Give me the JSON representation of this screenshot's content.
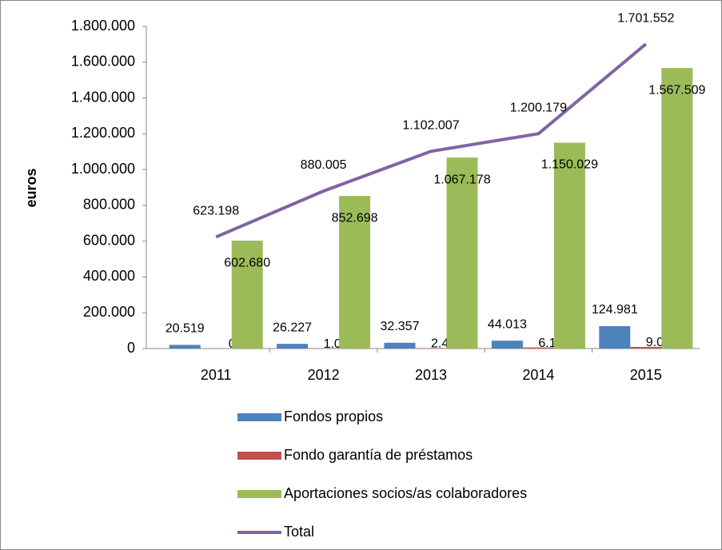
{
  "chart_data": {
    "type": "bar_line",
    "y_label": "euros",
    "categories": [
      "2011",
      "2012",
      "2013",
      "2014",
      "2015"
    ],
    "series": [
      {
        "name": "Fondos propios",
        "type": "bar",
        "color": "#4f81bd",
        "values": [
          20519,
          26227,
          32357,
          44013,
          124981
        ],
        "value_labels": [
          "20.519",
          "26.227",
          "32.357",
          "44.013",
          "124.981"
        ]
      },
      {
        "name": "Fondo garantía de préstamos",
        "type": "bar",
        "color": "#c0504d",
        "values": [
          0,
          1080,
          2472,
          6137,
          9062
        ],
        "value_labels": [
          "0",
          "1.080",
          "2.472",
          "6.137",
          "9.062"
        ]
      },
      {
        "name": "Aportaciones socios/as colaboradores",
        "type": "bar",
        "color": "#9bbb59",
        "values": [
          602680,
          852698,
          1067178,
          1150029,
          1567509
        ],
        "value_labels": [
          "602.680",
          "852.698",
          "1.067.178",
          "1.150.029",
          "1.567.509"
        ]
      },
      {
        "name": "Total",
        "type": "line",
        "color": "#8064a2",
        "values": [
          623198,
          880005,
          1102007,
          1200179,
          1701552
        ],
        "value_labels": [
          "623.198",
          "880.005",
          "1.102.007",
          "1.200.179",
          "1.701.552"
        ]
      }
    ],
    "ylim": [
      0,
      1800000
    ],
    "yticks": [
      0,
      {
        "value": 200000,
        "label": "200.000"
      },
      {
        "value": 400000,
        "label": "400.000"
      },
      {
        "value": 600000,
        "label": "600.000"
      },
      {
        "value": 800000,
        "label": "800.000"
      },
      {
        "value": 1000000,
        "label": "1.000.000"
      },
      {
        "value": 1200000,
        "label": "1.200.000"
      },
      {
        "value": 1400000,
        "label": "1.400.000"
      },
      {
        "value": 1600000,
        "label": "1.600.000"
      },
      {
        "value": 1800000,
        "label": "1.800.000"
      }
    ],
    "grid": false,
    "legend": "bottom"
  }
}
